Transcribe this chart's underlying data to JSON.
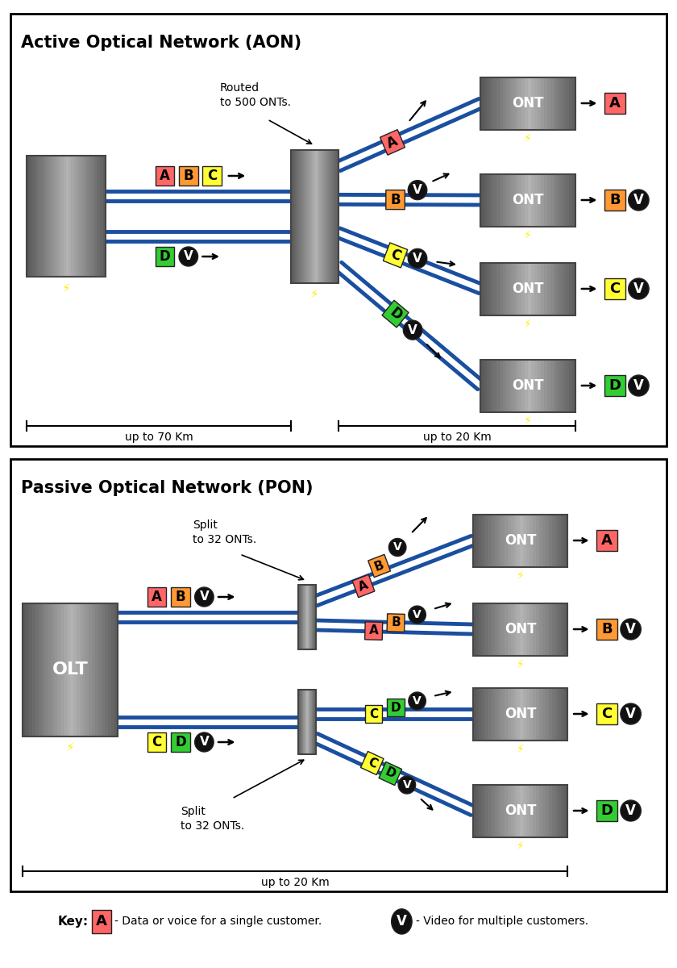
{
  "aon_title": "Active Optical Network (AON)",
  "pon_title": "Passive Optical Network (PON)",
  "aon_subtitle": "Routed\nto 500 ONTs.",
  "pon_split1": "Split\nto 32 ONTs.",
  "pon_split2": "Split\nto 32 ONTs.",
  "aon_dist1": "up to 70 Km",
  "aon_dist2": "up to 20 Km",
  "pon_dist": "up to 20 Km",
  "key_text1": "- Data or voice for a single customer.",
  "key_text2": "- Video for multiple customers.",
  "bg_color": "#ffffff",
  "cable_color": "#1a4fa0",
  "colors": {
    "A": "#ff6666",
    "B": "#ff9933",
    "C": "#ffff33",
    "D": "#33cc33",
    "V": "#111111"
  }
}
